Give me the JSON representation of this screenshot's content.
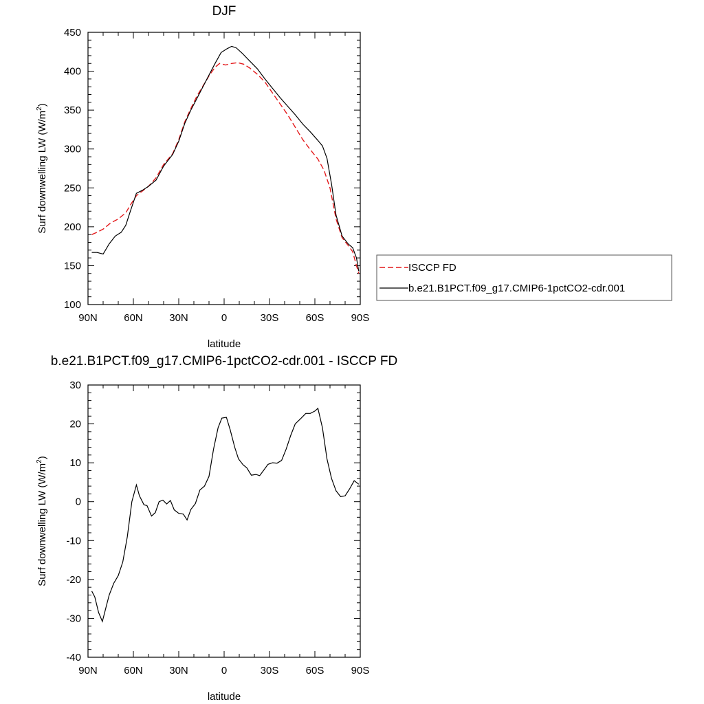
{
  "chart_data": [
    {
      "type": "line",
      "title": "DJF",
      "xlabel": "latitude",
      "ylabel": "Surf downwelling LW (W/m",
      "ylabel_sup": "2",
      "ylabel_close": ")",
      "xlim": [
        -90,
        90
      ],
      "ylim": [
        100,
        450
      ],
      "x_ticks": [
        {
          "value": -90,
          "label": "90N"
        },
        {
          "value": -60,
          "label": "60N"
        },
        {
          "value": -30,
          "label": "30N"
        },
        {
          "value": 0,
          "label": "0"
        },
        {
          "value": 30,
          "label": "30S"
        },
        {
          "value": 60,
          "label": "60S"
        },
        {
          "value": 90,
          "label": "90S"
        }
      ],
      "y_ticks": [
        100,
        150,
        200,
        250,
        300,
        350,
        400,
        450
      ],
      "legend": "right",
      "series": [
        {
          "name": "ISCCP FD",
          "color": "#e41a1c",
          "dash": "dashed",
          "points": [
            [
              -87.5,
              190
            ],
            [
              -84,
              193
            ],
            [
              -80,
              197
            ],
            [
              -75,
              205
            ],
            [
              -70,
              210
            ],
            [
              -65,
              218
            ],
            [
              -62,
              228
            ],
            [
              -58,
              240
            ],
            [
              -54,
              246
            ],
            [
              -50,
              252
            ],
            [
              -45,
              263
            ],
            [
              -40,
              280
            ],
            [
              -34,
              294
            ],
            [
              -30,
              312
            ],
            [
              -26,
              335
            ],
            [
              -22,
              352
            ],
            [
              -18,
              368
            ],
            [
              -14,
              381
            ],
            [
              -10,
              394
            ],
            [
              -6,
              405
            ],
            [
              -3,
              410
            ],
            [
              1,
              408
            ],
            [
              5,
              410
            ],
            [
              9,
              411
            ],
            [
              13,
              409
            ],
            [
              17,
              404
            ],
            [
              22,
              396
            ],
            [
              27,
              386
            ],
            [
              32,
              372
            ],
            [
              37,
              358
            ],
            [
              42,
              344
            ],
            [
              47,
              328
            ],
            [
              52,
              312
            ],
            [
              57,
              299
            ],
            [
              62,
              287
            ],
            [
              66,
              273
            ],
            [
              70,
              250
            ],
            [
              74,
              210
            ],
            [
              78,
              186
            ],
            [
              82,
              176
            ],
            [
              85,
              168
            ],
            [
              87.5,
              150
            ],
            [
              89,
              140
            ]
          ]
        },
        {
          "name": "b.e21.B1PCT.f09_g17.CMIP6-1pctCO2-cdr.001",
          "color": "#000000",
          "dash": "solid",
          "points": [
            [
              -87.5,
              167
            ],
            [
              -84,
              167
            ],
            [
              -80,
              165
            ],
            [
              -76,
              178
            ],
            [
              -72,
              188
            ],
            [
              -68,
              193
            ],
            [
              -65,
              202
            ],
            [
              -62,
              220
            ],
            [
              -58,
              243
            ],
            [
              -54,
              247
            ],
            [
              -50,
              252
            ],
            [
              -45,
              260
            ],
            [
              -40,
              278
            ],
            [
              -34,
              293
            ],
            [
              -30,
              310
            ],
            [
              -26,
              333
            ],
            [
              -22,
              350
            ],
            [
              -18,
              365
            ],
            [
              -14,
              380
            ],
            [
              -10,
              395
            ],
            [
              -6,
              410
            ],
            [
              -2,
              424
            ],
            [
              2,
              429
            ],
            [
              5,
              432
            ],
            [
              8,
              430
            ],
            [
              12,
              423
            ],
            [
              17,
              413
            ],
            [
              22,
              403
            ],
            [
              27,
              390
            ],
            [
              32,
              378
            ],
            [
              37,
              366
            ],
            [
              42,
              355
            ],
            [
              47,
              344
            ],
            [
              52,
              332
            ],
            [
              57,
              322
            ],
            [
              62,
              311
            ],
            [
              65,
              304
            ],
            [
              68,
              288
            ],
            [
              71,
              255
            ],
            [
              74,
              215
            ],
            [
              78,
              188
            ],
            [
              82,
              178
            ],
            [
              85,
              173
            ],
            [
              87.5,
              160
            ],
            [
              89,
              143
            ]
          ]
        }
      ]
    },
    {
      "type": "line",
      "title": "b.e21.B1PCT.f09_g17.CMIP6-1pctCO2-cdr.001 - ISCCP FD",
      "xlabel": "latitude",
      "ylabel": "Surf downwelling LW (W/m",
      "ylabel_sup": "2",
      "ylabel_close": ")",
      "xlim": [
        -90,
        90
      ],
      "ylim": [
        -40,
        30
      ],
      "x_ticks": [
        {
          "value": -90,
          "label": "90N"
        },
        {
          "value": -60,
          "label": "60N"
        },
        {
          "value": -30,
          "label": "30N"
        },
        {
          "value": 0,
          "label": "0"
        },
        {
          "value": 30,
          "label": "30S"
        },
        {
          "value": 60,
          "label": "60S"
        },
        {
          "value": 90,
          "label": "90S"
        }
      ],
      "y_ticks": [
        -40,
        -30,
        -20,
        -10,
        0,
        10,
        20,
        30
      ],
      "series": [
        {
          "color": "#000000",
          "dash": "solid",
          "points": [
            [
              -87.5,
              -23
            ],
            [
              -85.5,
              -24.5
            ],
            [
              -83,
              -28.5
            ],
            [
              -80.5,
              -30.8
            ],
            [
              -78,
              -27
            ],
            [
              -76,
              -24
            ],
            [
              -73,
              -21
            ],
            [
              -70,
              -19
            ],
            [
              -67,
              -15.5
            ],
            [
              -64,
              -9
            ],
            [
              -61,
              0
            ],
            [
              -58,
              4.3
            ],
            [
              -56,
              1.5
            ],
            [
              -53,
              -0.8
            ],
            [
              -51,
              -1
            ],
            [
              -48,
              -3.7
            ],
            [
              -45.5,
              -2.8
            ],
            [
              -43,
              0
            ],
            [
              -40.5,
              0.4
            ],
            [
              -38,
              -0.6
            ],
            [
              -35.5,
              0.3
            ],
            [
              -33,
              -2.1
            ],
            [
              -30,
              -3
            ],
            [
              -27,
              -3.2
            ],
            [
              -24.5,
              -4.7
            ],
            [
              -22,
              -2
            ],
            [
              -19,
              -0.5
            ],
            [
              -16,
              3
            ],
            [
              -13,
              4
            ],
            [
              -10,
              6.5
            ],
            [
              -7,
              13.5
            ],
            [
              -4,
              19
            ],
            [
              -1.5,
              21.5
            ],
            [
              1.5,
              21.7
            ],
            [
              4,
              18.5
            ],
            [
              7,
              14
            ],
            [
              9.5,
              11
            ],
            [
              12.5,
              9.5
            ],
            [
              15,
              8.7
            ],
            [
              18,
              6.8
            ],
            [
              21,
              7
            ],
            [
              23.5,
              6.7
            ],
            [
              26,
              8
            ],
            [
              29,
              9.6
            ],
            [
              32,
              10
            ],
            [
              35,
              9.9
            ],
            [
              38,
              10.6
            ],
            [
              41,
              13.5
            ],
            [
              44,
              17
            ],
            [
              47,
              20
            ],
            [
              51,
              21.5
            ],
            [
              54,
              22.7
            ],
            [
              57,
              22.7
            ],
            [
              60,
              23.3
            ],
            [
              62,
              24
            ],
            [
              65,
              19
            ],
            [
              68,
              11
            ],
            [
              71,
              6
            ],
            [
              74,
              2.8
            ],
            [
              77,
              1.3
            ],
            [
              80,
              1.5
            ],
            [
              83,
              3.3
            ],
            [
              86,
              5.4
            ],
            [
              89,
              4.5
            ]
          ]
        }
      ]
    }
  ]
}
